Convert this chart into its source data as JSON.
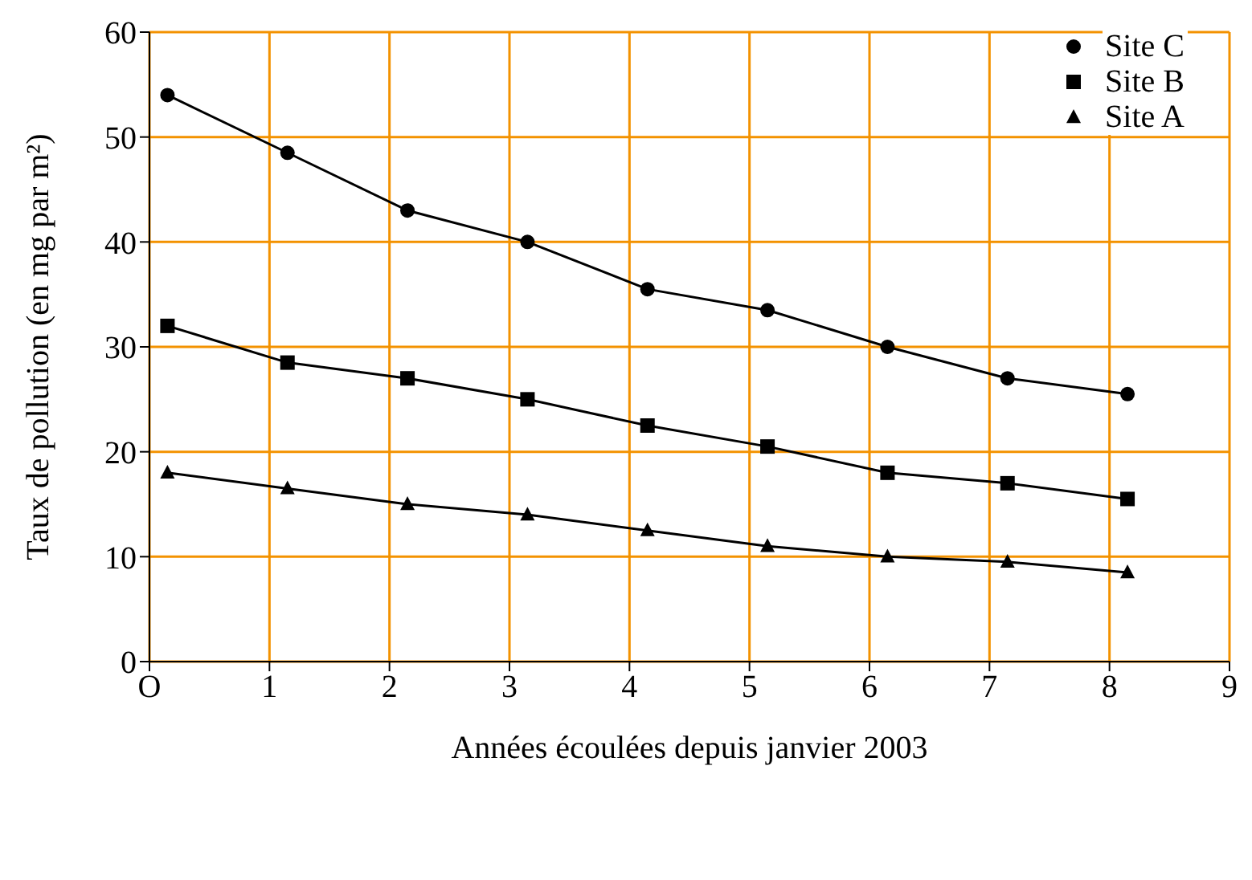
{
  "chart_data": {
    "type": "line",
    "xlabel": "Années écoulées depuis janvier 2003",
    "ylabel": "Taux de pollution (en mg par m²)",
    "x": [
      0.15,
      1.15,
      2.15,
      3.15,
      4.15,
      5.15,
      6.15,
      7.15,
      8.15
    ],
    "series": [
      {
        "name": "Site C",
        "color": "#000000",
        "marker": "circle",
        "values": [
          54,
          48.5,
          43,
          40,
          35.5,
          33.5,
          30,
          27,
          25.5
        ]
      },
      {
        "name": "Site B",
        "color": "#000000",
        "marker": "square",
        "values": [
          32,
          28.5,
          27,
          25,
          22.5,
          20.5,
          18,
          17,
          15.5
        ]
      },
      {
        "name": "Site A",
        "color": "#000000",
        "marker": "triangle",
        "values": [
          18,
          16.5,
          15,
          14,
          12.5,
          11,
          10,
          9.5,
          8.5
        ]
      }
    ],
    "xlim": [
      0,
      9
    ],
    "xticks": [
      {
        "value": 0,
        "label": "O"
      },
      1,
      2,
      3,
      4,
      5,
      6,
      7,
      8,
      9
    ],
    "ylim": [
      0,
      60
    ],
    "yticks": [
      0,
      10,
      20,
      30,
      40,
      50,
      60
    ],
    "grid": true,
    "legend": "top right",
    "line_style": "solid"
  }
}
